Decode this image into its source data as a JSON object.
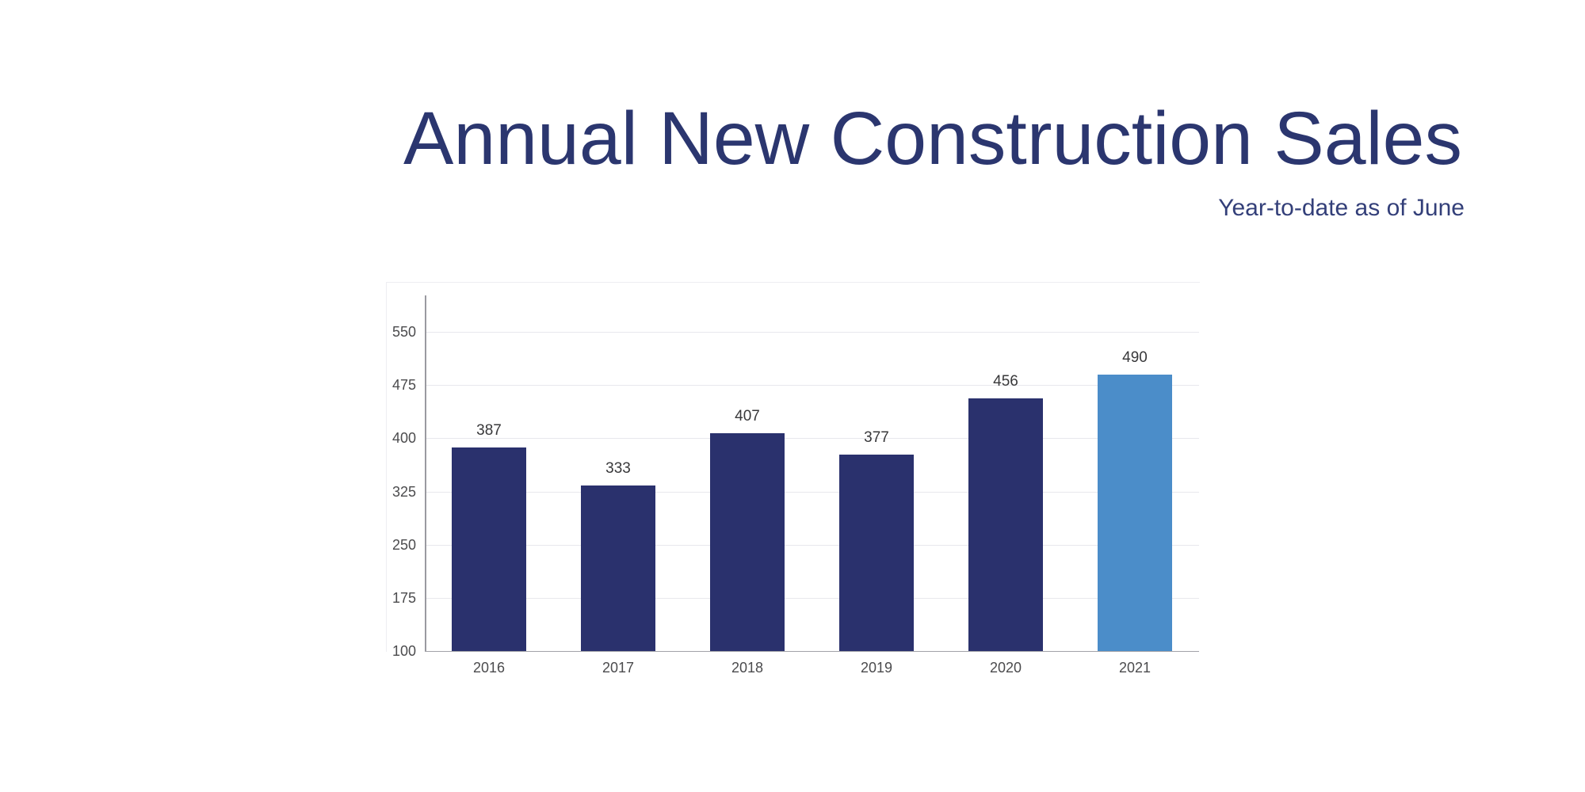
{
  "header": {
    "title": "Annual New Construction Sales",
    "subtitle": "Year-to-date as of June"
  },
  "colors": {
    "title": "#2b366f",
    "subtitle": "#333f79",
    "bar_default": "#2a316d",
    "bar_highlight": "#4b8dc9",
    "gridline": "#e8e8ed",
    "axis_line": "#9a9aa0",
    "baseline": "#a2a2a8",
    "value_label": "#38383a",
    "tick_label": "#4b4b4d"
  },
  "chart_data": {
    "type": "bar",
    "title": "Annual New Construction Sales",
    "subtitle": "Year-to-date as of June",
    "categories": [
      "2016",
      "2017",
      "2018",
      "2019",
      "2020",
      "2021"
    ],
    "values": [
      387,
      333,
      407,
      377,
      456,
      490
    ],
    "highlight_index": 5,
    "xlabel": "",
    "ylabel": "",
    "ylim": [
      100,
      550
    ],
    "yticks": [
      100,
      175,
      250,
      325,
      400,
      475,
      550
    ],
    "grid": true,
    "legend": "none"
  }
}
